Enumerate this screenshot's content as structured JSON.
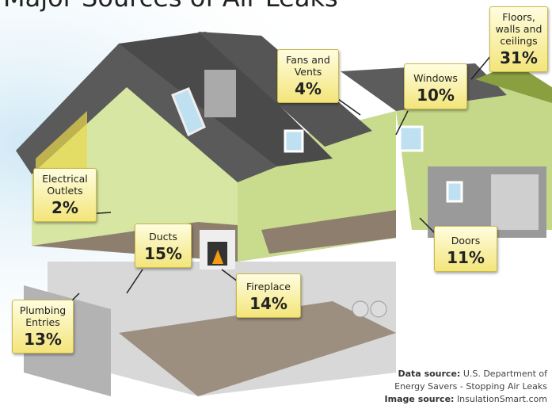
{
  "title": "Major Sources of Air Leaks",
  "callouts": [
    {
      "label": "Floors, walls and ceilings",
      "value": "31%"
    },
    {
      "label": "Fans and Vents",
      "value": "4%"
    },
    {
      "label": "Windows",
      "value": "10%"
    },
    {
      "label": "Electrical Outlets",
      "value": "2%"
    },
    {
      "label": "Ducts",
      "value": "15%"
    },
    {
      "label": "Fireplace",
      "value": "14%"
    },
    {
      "label": "Doors",
      "value": "11%"
    },
    {
      "label": "Plumbing Entries",
      "value": "13%"
    }
  ],
  "credits": {
    "data_label": "Data source:",
    "data_text": "U.S. Department of Energy Savers - Stopping Air Leaks",
    "image_label": "Image source:",
    "image_text": "InsulationSmart.com"
  }
}
